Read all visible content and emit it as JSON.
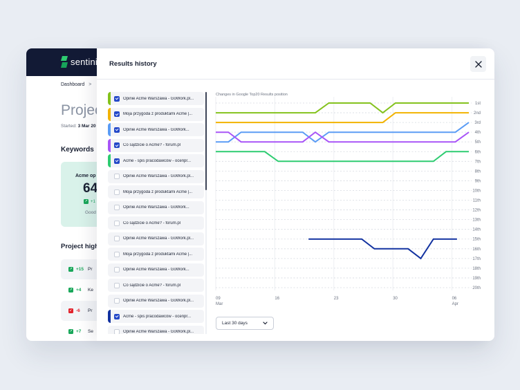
{
  "app": {
    "brand": "sentinic",
    "breadcrumb": {
      "root": "Dashboard",
      "separator": ">"
    },
    "project_title": "Projec",
    "started_label": "Started:",
    "started_value": "3 Mar 20",
    "keywords_title": "Keywords",
    "keyword_card": {
      "name": "Acme op",
      "value": "64",
      "change": "+1",
      "status": "Good"
    },
    "highlights_title": "Project high",
    "highlights": [
      {
        "delta": "+15",
        "direction": "up",
        "text": "Pr"
      },
      {
        "delta": "+4",
        "direction": "up",
        "text": "Ke"
      },
      {
        "delta": "-6",
        "direction": "down",
        "text": "Pr"
      },
      {
        "delta": "+7",
        "direction": "up",
        "text": "Se"
      }
    ]
  },
  "modal": {
    "title": "Results history",
    "close_icon": "close-icon",
    "range_select": {
      "value": "Last 30 days",
      "icon": "chevron-down-icon"
    }
  },
  "results_list": [
    {
      "label": "Opinie Acme Warszawa - GoWork.pl...",
      "checked": true,
      "color": "#84c21d"
    },
    {
      "label": "Moja przygoda z produktami Acme |...",
      "checked": true,
      "color": "#f2b300"
    },
    {
      "label": "Opinie Acme Warszawa - GoWork...",
      "checked": true,
      "color": "#5b9cf5"
    },
    {
      "label": "Co sądzicie o Acme? - forum.pl",
      "checked": true,
      "color": "#a855f7"
    },
    {
      "label": "Acme - spis pracodawców - ocenpr...",
      "checked": true,
      "color": "#2ecc71"
    },
    {
      "label": "Opinie Acme Warszawa - GoWork.pl...",
      "checked": false,
      "color": ""
    },
    {
      "label": "Moja przygoda z produktami Acme |...",
      "checked": false,
      "color": ""
    },
    {
      "label": "Opinie Acme Warszawa - GoWork...",
      "checked": false,
      "color": ""
    },
    {
      "label": "Co sądzicie o Acme? - forum.pl",
      "checked": false,
      "color": ""
    },
    {
      "label": "Opinie Acme Warszawa - GoWork.pl...",
      "checked": false,
      "color": ""
    },
    {
      "label": "Moja przygoda z produktami Acme |...",
      "checked": false,
      "color": ""
    },
    {
      "label": "Opinie Acme Warszawa - GoWork...",
      "checked": false,
      "color": ""
    },
    {
      "label": "Co sądzicie o Acme? - forum.pl",
      "checked": false,
      "color": ""
    },
    {
      "label": "Opinie Acme Warszawa - GoWork.pl...",
      "checked": false,
      "color": ""
    },
    {
      "label": "Acme - spis pracodawców - ocenpr...",
      "checked": true,
      "color": "#1232a0"
    },
    {
      "label": "Opinie Acme Warszawa - GoWork.pl...",
      "checked": false,
      "color": ""
    }
  ],
  "chart_data": {
    "type": "line",
    "title": "Changes in Google Top20 Results position",
    "x_unit": "day offset from 09 Mar",
    "xlim": [
      0,
      30
    ],
    "ylim": [
      1,
      20
    ],
    "y_inverted": true,
    "grid": true,
    "x_ticks": [
      {
        "day": 0,
        "label": "09",
        "sub": "Mar"
      },
      {
        "day": 7,
        "label": "16",
        "sub": ""
      },
      {
        "day": 14,
        "label": "23",
        "sub": ""
      },
      {
        "day": 21,
        "label": "30",
        "sub": ""
      },
      {
        "day": 28,
        "label": "06",
        "sub": "Apr"
      }
    ],
    "y_ticks": [
      "1st",
      "2nd",
      "3rd",
      "4th",
      "5th",
      "6th",
      "7th",
      "8th",
      "9th",
      "10th",
      "11th",
      "12th",
      "13th",
      "14th",
      "15th",
      "16th",
      "17th",
      "18th",
      "19th",
      "20th"
    ],
    "series": [
      {
        "name": "Opinie Acme Warszawa - GoWork.pl...",
        "color": "#84c21d",
        "points": [
          [
            0,
            2
          ],
          [
            11.8,
            2
          ],
          [
            13.4,
            1
          ],
          [
            18.3,
            1
          ],
          [
            19.8,
            2
          ],
          [
            21.3,
            1
          ],
          [
            30,
            1
          ]
        ]
      },
      {
        "name": "Moja przygoda z produktami Acme |...",
        "color": "#f2b300",
        "points": [
          [
            0,
            3
          ],
          [
            19.8,
            3
          ],
          [
            21.3,
            2
          ],
          [
            30,
            2
          ]
        ]
      },
      {
        "name": "Opinie Acme Warszawa - GoWork...",
        "color": "#5b9cf5",
        "points": [
          [
            0,
            5
          ],
          [
            1.5,
            5
          ],
          [
            3,
            4
          ],
          [
            10.3,
            4
          ],
          [
            11.8,
            5
          ],
          [
            13.4,
            4
          ],
          [
            28.4,
            4
          ],
          [
            30,
            3
          ]
        ]
      },
      {
        "name": "Co sądzicie o Acme? - forum.pl",
        "color": "#a855f7",
        "points": [
          [
            0,
            4
          ],
          [
            1.5,
            4
          ],
          [
            3,
            5
          ],
          [
            10.3,
            5
          ],
          [
            11.8,
            4
          ],
          [
            13.4,
            5
          ],
          [
            28.4,
            5
          ],
          [
            30,
            4
          ]
        ]
      },
      {
        "name": "Acme - spis pracodawców - ocenpr...",
        "color": "#2ecc71",
        "points": [
          [
            0,
            6
          ],
          [
            5.8,
            6
          ],
          [
            7.4,
            7
          ],
          [
            25.8,
            7
          ],
          [
            27.3,
            6
          ],
          [
            30,
            6
          ]
        ]
      },
      {
        "name": "Acme - spis pracodawców - ocenpr...",
        "color": "#1232a0",
        "points": [
          [
            11,
            15
          ],
          [
            17.3,
            15
          ],
          [
            18.8,
            16
          ],
          [
            22.8,
            16
          ],
          [
            24.3,
            17
          ],
          [
            25.8,
            15
          ],
          [
            28.6,
            15
          ]
        ]
      }
    ]
  }
}
